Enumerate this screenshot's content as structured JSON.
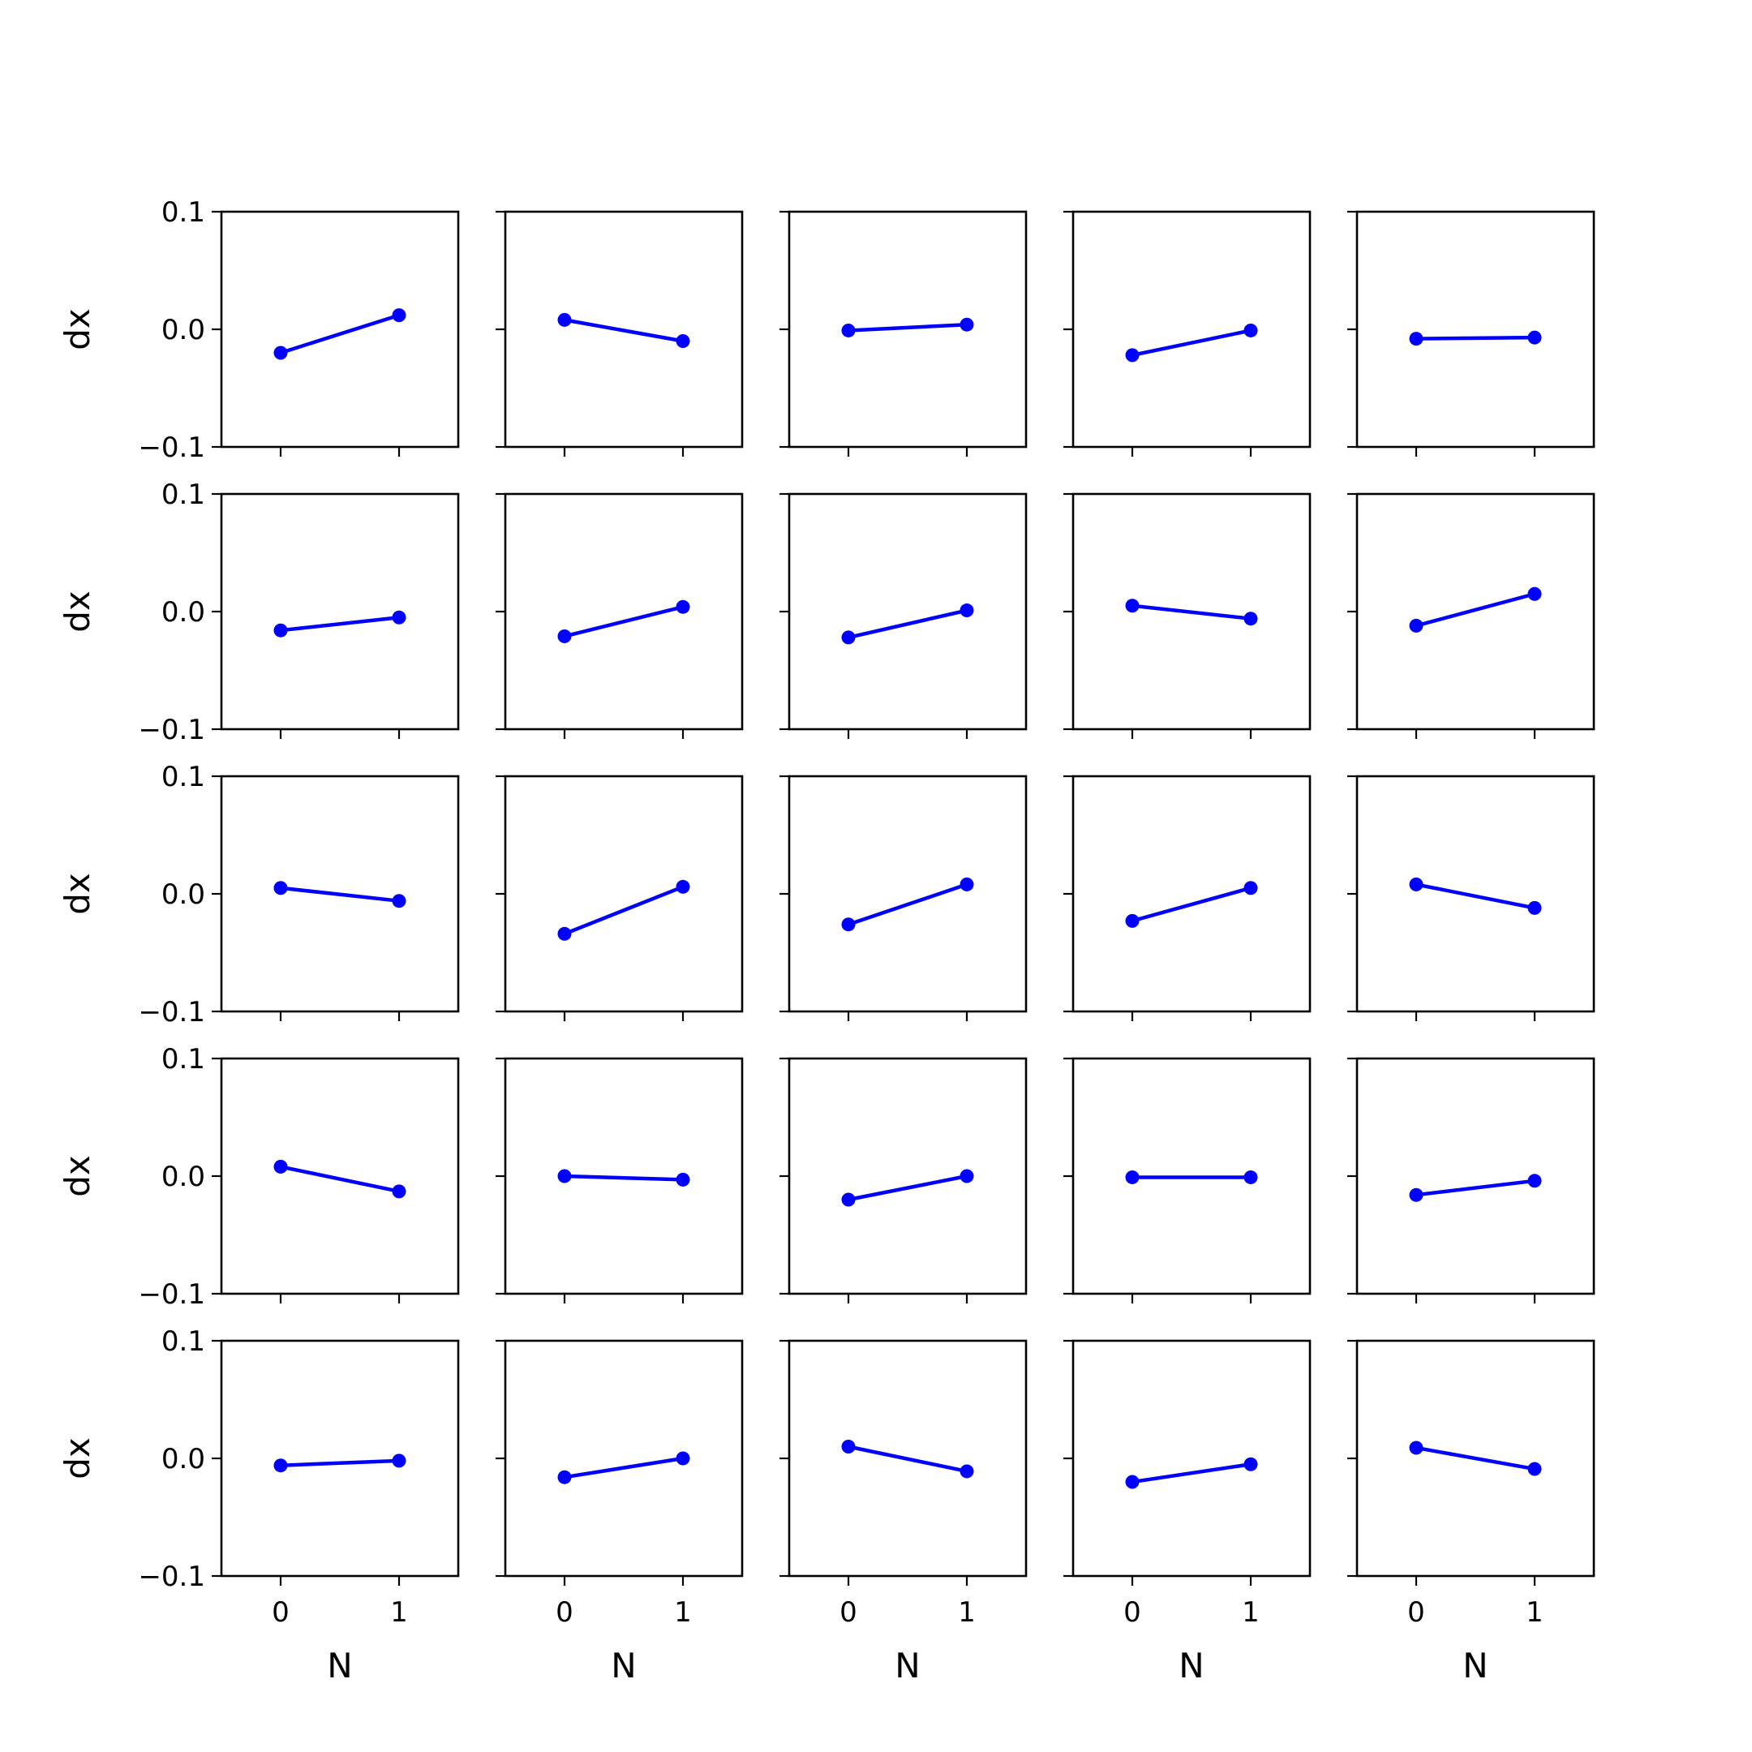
{
  "chart_data": {
    "type": "line",
    "layout": {
      "rows": 5,
      "cols": 5
    },
    "xlabel": "N",
    "ylabel": "dx",
    "xlim": [
      -0.5,
      1.5
    ],
    "ylim": [
      -0.1,
      0.1
    ],
    "xticks": [
      0,
      1
    ],
    "yticks": [
      0.1,
      0.0,
      -0.1
    ],
    "xtick_labels": [
      "0",
      "1"
    ],
    "ytick_labels": [
      "0.1",
      "0.0",
      "−0.1"
    ],
    "line_color": "#0000ff",
    "marker": "circle",
    "x": [
      0,
      1
    ],
    "panels": [
      [
        -0.02,
        0.012
      ],
      [
        0.008,
        -0.01
      ],
      [
        -0.001,
        0.004
      ],
      [
        -0.022,
        -0.001
      ],
      [
        -0.008,
        -0.007
      ],
      [
        -0.016,
        -0.005
      ],
      [
        -0.021,
        0.004
      ],
      [
        -0.022,
        0.001
      ],
      [
        0.005,
        -0.006
      ],
      [
        -0.012,
        0.015
      ],
      [
        0.005,
        -0.006
      ],
      [
        -0.034,
        0.006
      ],
      [
        -0.026,
        0.008
      ],
      [
        -0.023,
        0.005
      ],
      [
        0.008,
        -0.012
      ],
      [
        0.008,
        -0.013
      ],
      [
        0.0,
        -0.003
      ],
      [
        -0.02,
        0.0
      ],
      [
        -0.001,
        -0.001
      ],
      [
        -0.016,
        -0.004
      ],
      [
        -0.006,
        -0.002
      ],
      [
        -0.016,
        0.0
      ],
      [
        0.01,
        -0.011
      ],
      [
        -0.02,
        -0.005
      ],
      [
        0.009,
        -0.009
      ]
    ]
  }
}
